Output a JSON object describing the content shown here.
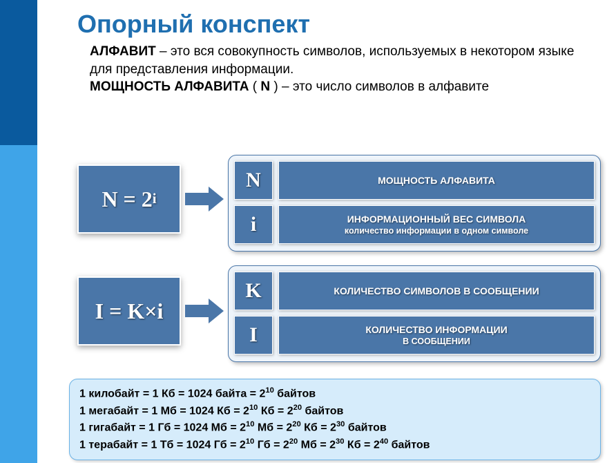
{
  "title": "Опорный конспект",
  "intro": {
    "term1": "АЛФАВИТ",
    "def1": " – это вся совокупность символов, используемых в некотором языке  для  представления информации.",
    "term2": "МОЩНОСТЬ  АЛФАВИТА",
    "paren_open": "  ( ",
    "nvar": "N",
    "paren_close": " ) – это  число  символов в алфавите"
  },
  "formula1": {
    "base": "N = 2",
    "exp": "i"
  },
  "formula2": {
    "text": "I = K×i"
  },
  "panel1": {
    "r1": {
      "sym": "N",
      "desc": "МОЩНОСТЬ  АЛФАВИТА"
    },
    "r2": {
      "sym": "i",
      "desc": "ИНФОРМАЦИОННЫЙ  ВЕС СИМВОЛА",
      "sub": "количество информации в одном символе"
    }
  },
  "panel2": {
    "r1": {
      "sym": "K",
      "desc": "КОЛИЧЕСТВО  СИМВОЛОВ В СООБЩЕНИИ"
    },
    "r2": {
      "sym": "I",
      "desc": "КОЛИЧЕСТВО ИНФОРМАЦИИ",
      "sub": "В СООБЩЕНИИ"
    }
  },
  "units": {
    "l1": {
      "a": "1 килобайт = 1 Кб = 1024 байта = 2",
      "e1": "10",
      "b": "  байтов"
    },
    "l2": {
      "a": "1 мегабайт = 1 Мб = 1024  Кб = 2",
      "e1": "10",
      "b": "  Кб = 2",
      "e2": "20",
      "c": " байтов"
    },
    "l3": {
      "a": "1 гигабайт = 1 Гб = 1024  Мб = 2",
      "e1": "10",
      "b": "  Мб = 2",
      "e2": "20",
      "c": " Кб = 2",
      "e3": "30",
      "d": " байтов"
    },
    "l4": {
      "a": "1 терабайт = 1 Тб = 1024  Гб = 2",
      "e1": "10",
      "b": "  Гб = 2",
      "e2": "20",
      "c": " Мб = 2",
      "e3": "30",
      "d": " Кб = 2",
      "e4": "40",
      "e": " байтов"
    }
  },
  "colors": {
    "brand_primary": "#4a76a8",
    "brand_title": "#1f6fb0",
    "sidebar_dark": "#0a5a9e",
    "sidebar_light": "#3fa4e8",
    "panel_bg": "#eef4fa",
    "units_bg": "#d6ecfb",
    "units_border": "#6cb3e6"
  }
}
